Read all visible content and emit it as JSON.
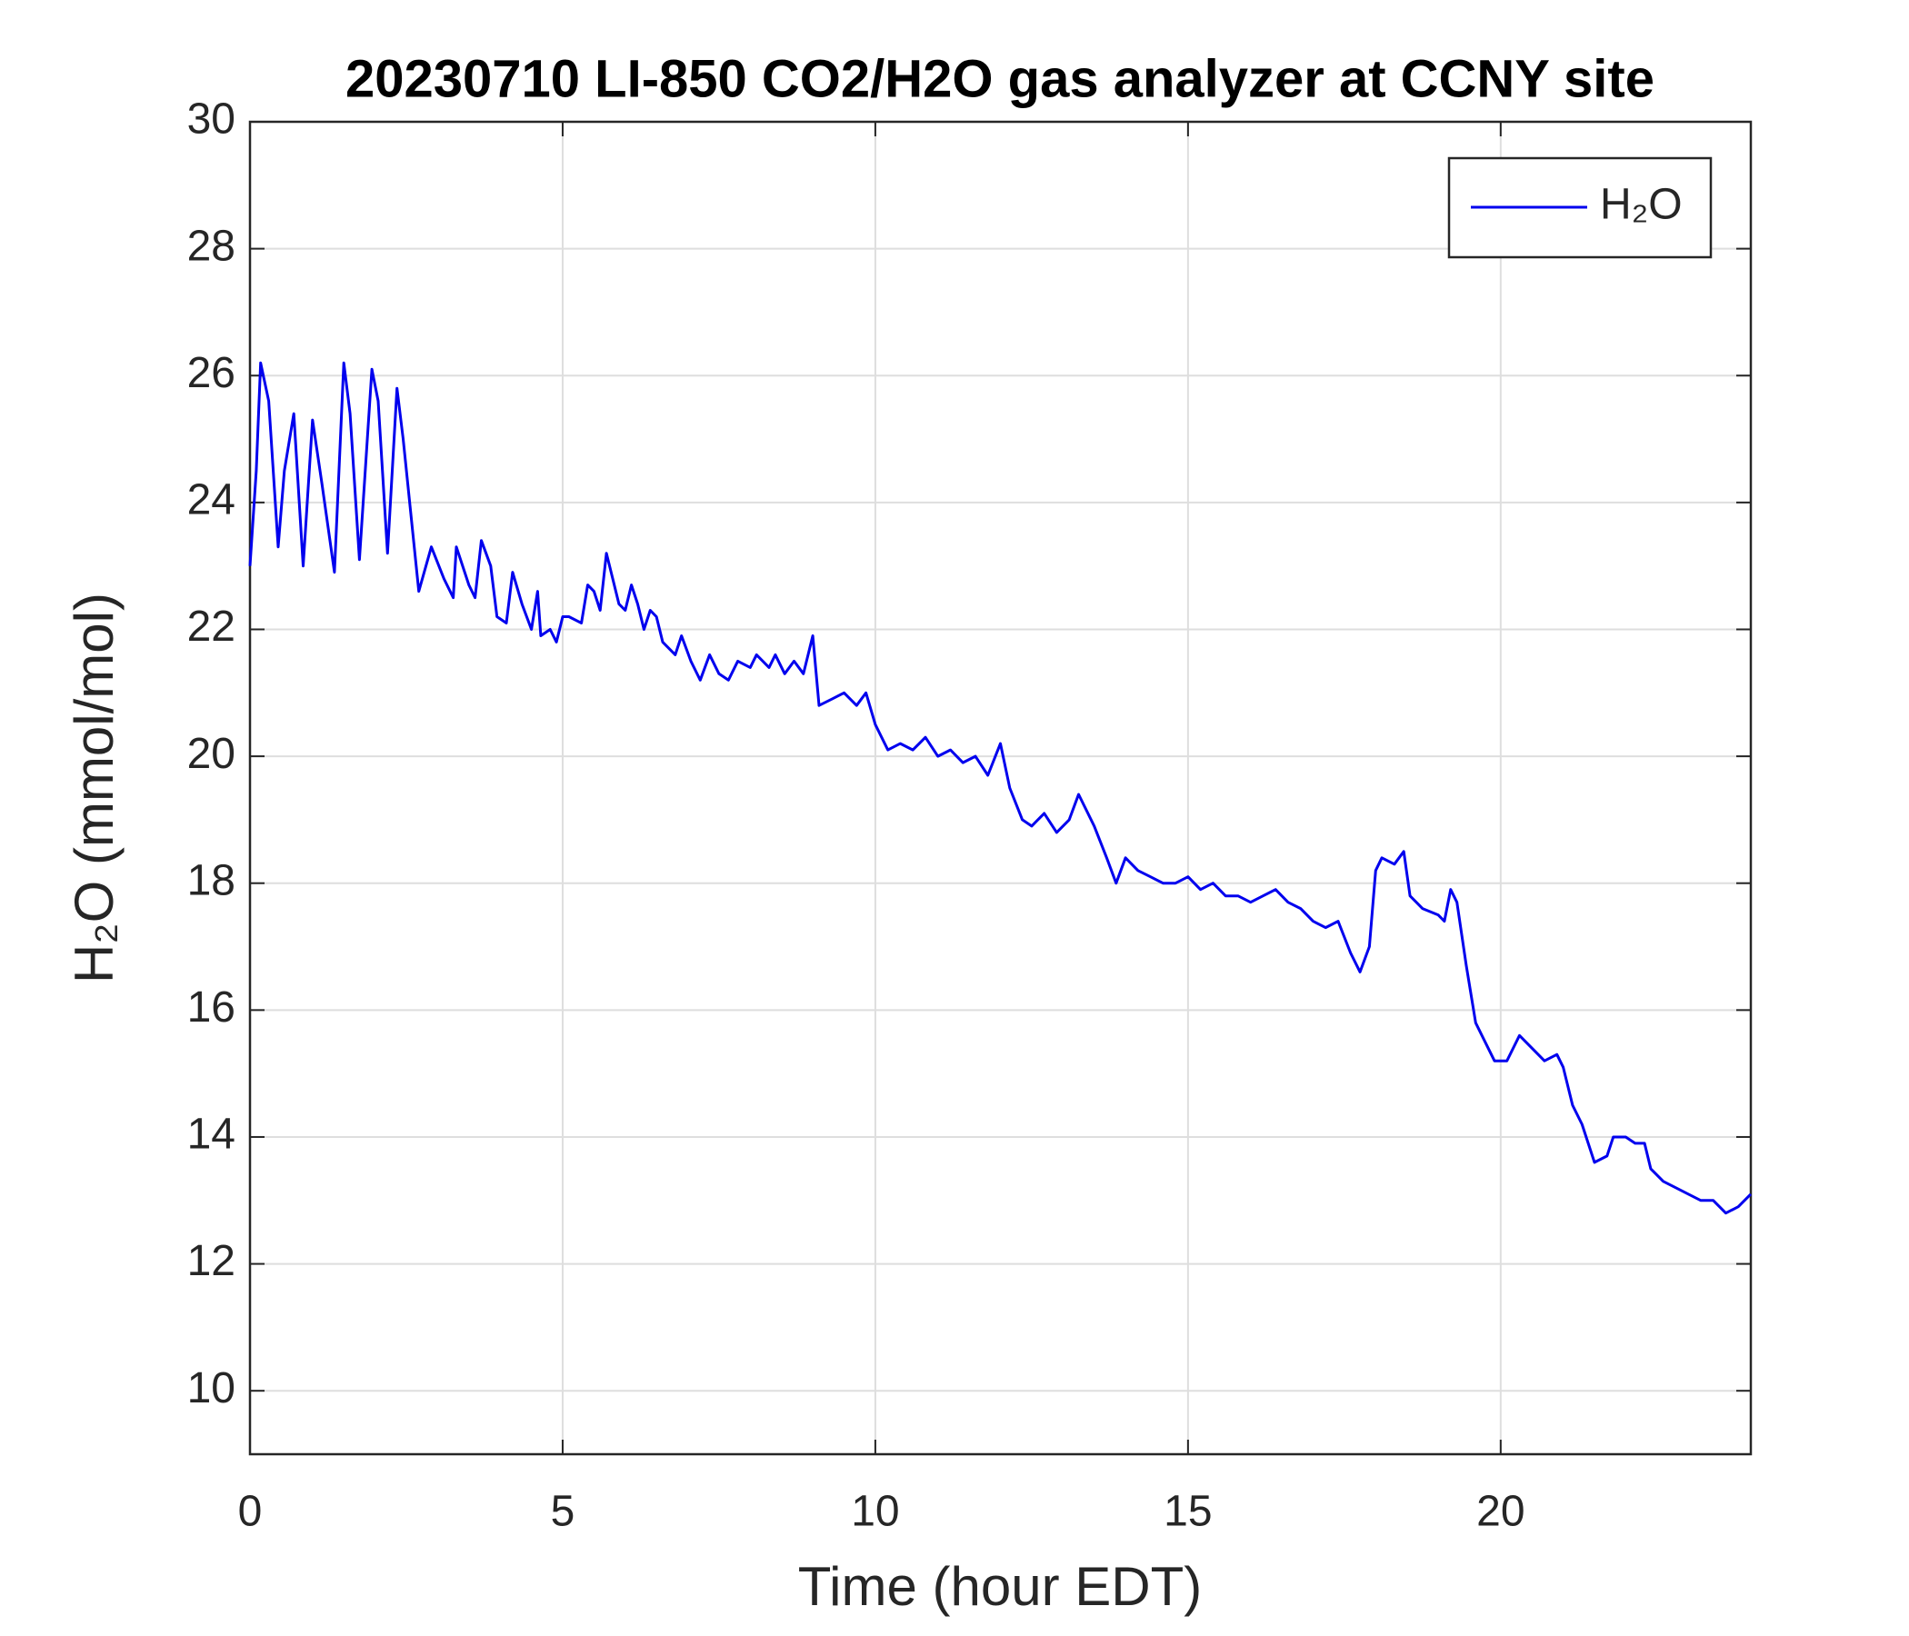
{
  "chart_data": {
    "type": "line",
    "title": "20230710 LI-850 CO2/H2O gas analyzer at CCNY site",
    "xlabel": "Time (hour EDT)",
    "ylabel": "H₂O (mmol/mol)",
    "x": [
      0,
      0.1,
      0.17,
      0.3,
      0.45,
      0.55,
      0.7,
      0.85,
      1.0,
      1.15,
      1.35,
      1.5,
      1.6,
      1.75,
      1.95,
      2.05,
      2.2,
      2.35,
      2.45,
      2.7,
      2.9,
      3.1,
      3.25,
      3.3,
      3.5,
      3.6,
      3.7,
      3.85,
      3.95,
      4.1,
      4.2,
      4.35,
      4.5,
      4.6,
      4.65,
      4.8,
      4.9,
      5.0,
      5.1,
      5.3,
      5.4,
      5.5,
      5.6,
      5.7,
      5.8,
      5.9,
      6.0,
      6.1,
      6.2,
      6.3,
      6.4,
      6.5,
      6.6,
      6.8,
      6.9,
      7.05,
      7.2,
      7.35,
      7.5,
      7.65,
      7.8,
      8.0,
      8.1,
      8.3,
      8.4,
      8.55,
      8.7,
      8.85,
      9.0,
      9.1,
      9.3,
      9.5,
      9.7,
      9.85,
      10.0,
      10.2,
      10.4,
      10.6,
      10.8,
      11.0,
      11.2,
      11.4,
      11.6,
      11.8,
      12.0,
      12.15,
      12.35,
      12.5,
      12.7,
      12.9,
      13.1,
      13.25,
      13.5,
      13.7,
      13.85,
      14.0,
      14.2,
      14.4,
      14.6,
      14.8,
      15.0,
      15.2,
      15.4,
      15.6,
      15.8,
      16.0,
      16.2,
      16.4,
      16.6,
      16.8,
      17.0,
      17.2,
      17.4,
      17.6,
      17.75,
      17.9,
      18.0,
      18.1,
      18.3,
      18.45,
      18.55,
      18.75,
      19.0,
      19.1,
      19.2,
      19.3,
      19.45,
      19.6,
      19.75,
      19.9,
      20.1,
      20.3,
      20.5,
      20.7,
      20.9,
      21.0,
      21.15,
      21.3,
      21.5,
      21.7,
      21.8,
      22.0,
      22.15,
      22.3,
      22.4,
      22.6,
      22.8,
      23.0,
      23.2,
      23.4,
      23.6,
      23.8,
      24.0
    ],
    "series": [
      {
        "name": "H₂O",
        "color": "#0000ee",
        "values": [
          23.0,
          24.5,
          26.2,
          25.6,
          23.3,
          24.5,
          25.4,
          23.0,
          25.3,
          24.3,
          22.9,
          26.2,
          25.4,
          23.1,
          26.1,
          25.6,
          23.2,
          25.8,
          25.0,
          22.6,
          23.3,
          22.8,
          22.5,
          23.3,
          22.7,
          22.5,
          23.4,
          23.0,
          22.2,
          22.1,
          22.9,
          22.4,
          22.0,
          22.6,
          21.9,
          22.0,
          21.8,
          22.2,
          22.2,
          22.1,
          22.7,
          22.6,
          22.3,
          23.2,
          22.8,
          22.4,
          22.3,
          22.7,
          22.4,
          22.0,
          22.3,
          22.2,
          21.8,
          21.6,
          21.9,
          21.5,
          21.2,
          21.6,
          21.3,
          21.2,
          21.5,
          21.4,
          21.6,
          21.4,
          21.6,
          21.3,
          21.5,
          21.3,
          21.9,
          20.8,
          20.9,
          21.0,
          20.8,
          21.0,
          20.5,
          20.1,
          20.2,
          20.1,
          20.3,
          20.0,
          20.1,
          19.9,
          20.0,
          19.7,
          20.2,
          19.5,
          19.0,
          18.9,
          19.1,
          18.8,
          19.0,
          19.4,
          18.9,
          18.4,
          18.0,
          18.4,
          18.2,
          18.1,
          18.0,
          18.0,
          18.1,
          17.9,
          18.0,
          17.8,
          17.8,
          17.7,
          17.8,
          17.9,
          17.7,
          17.6,
          17.4,
          17.3,
          17.4,
          16.9,
          16.6,
          17.0,
          18.2,
          18.4,
          18.3,
          18.5,
          17.8,
          17.6,
          17.5,
          17.4,
          17.9,
          17.7,
          16.7,
          15.8,
          15.5,
          15.2,
          15.2,
          15.6,
          15.4,
          15.2,
          15.3,
          15.1,
          14.5,
          14.2,
          13.6,
          13.7,
          14.0,
          14.0,
          13.9,
          13.9,
          13.5,
          13.3,
          13.2,
          13.1,
          13.0,
          13.0,
          12.8,
          12.9,
          13.1
        ]
      }
    ],
    "xlim": [
      0,
      24
    ],
    "xticks": [
      0,
      5,
      10,
      15,
      20
    ],
    "ylim": [
      9,
      30
    ],
    "yticks": [
      10,
      12,
      14,
      16,
      18,
      20,
      22,
      24,
      26,
      28,
      30
    ],
    "grid": true,
    "legend": "upper right"
  }
}
